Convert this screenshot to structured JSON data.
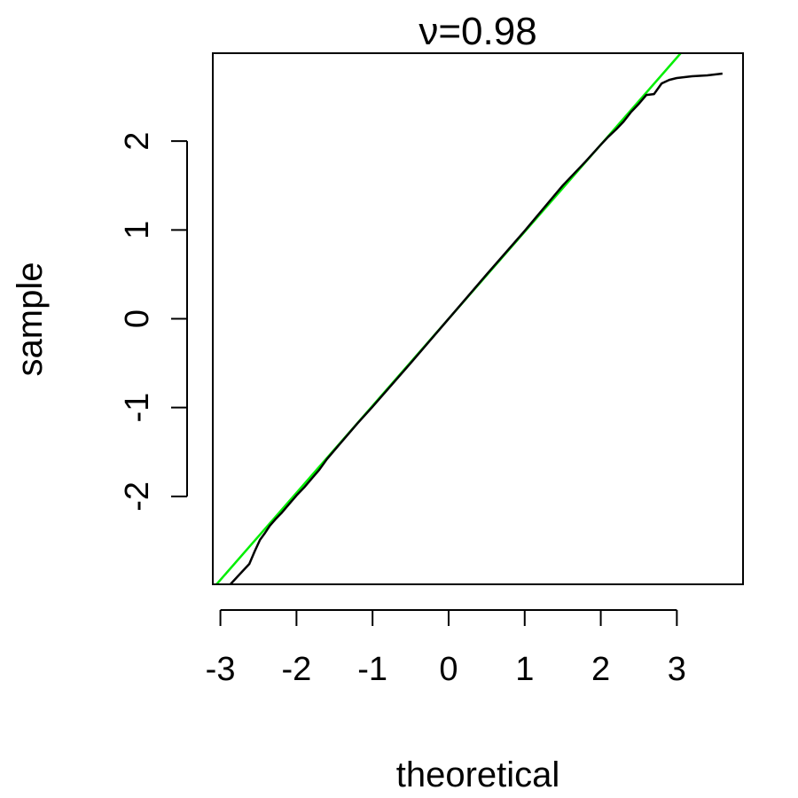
{
  "chart_data": {
    "type": "line",
    "title": "ν=0.98",
    "xlabel": "theoretical",
    "ylabel": "sample",
    "xlim": [
      -3.1,
      3.87
    ],
    "ylim": [
      -2.99,
      2.99
    ],
    "x_ticks": [
      -3,
      -2,
      -1,
      0,
      1,
      2,
      3
    ],
    "x_tick_labels": [
      "-3",
      "-2",
      "-1",
      "0",
      "1",
      "2",
      "3"
    ],
    "y_ticks": [
      -2,
      -1,
      0,
      1,
      2
    ],
    "y_tick_labels": [
      "-2",
      "-1",
      "0",
      "1",
      "2"
    ],
    "grid": false,
    "legend": "none",
    "colors": {
      "sample": "#000000",
      "reference": "#00ee00",
      "axes": "#000000"
    },
    "reference_line": {
      "intercept": 0,
      "slope": 0.98
    },
    "series": [
      {
        "x": [
          -2.88,
          -2.75,
          -2.62,
          -2.55,
          -2.48,
          -2.42,
          -2.35,
          -2.28,
          -2.2,
          -2.1,
          -2.0,
          -1.9,
          -1.8,
          -1.7,
          -1.6,
          -1.5,
          -1.2,
          -1.0,
          -0.5,
          0.0,
          0.5,
          1.0,
          1.5,
          1.8,
          2.0,
          2.1,
          2.2,
          2.3,
          2.4,
          2.5,
          2.6,
          2.7,
          2.8,
          2.9,
          3.0,
          3.2,
          3.4,
          3.6
        ],
        "y": [
          -3.0,
          -2.88,
          -2.76,
          -2.62,
          -2.49,
          -2.42,
          -2.33,
          -2.26,
          -2.19,
          -2.09,
          -1.99,
          -1.9,
          -1.8,
          -1.7,
          -1.58,
          -1.48,
          -1.18,
          -0.99,
          -0.5,
          0.0,
          0.5,
          0.99,
          1.5,
          1.77,
          1.96,
          2.05,
          2.13,
          2.22,
          2.33,
          2.42,
          2.52,
          2.53,
          2.65,
          2.69,
          2.71,
          2.73,
          2.74,
          2.76
        ]
      }
    ]
  }
}
